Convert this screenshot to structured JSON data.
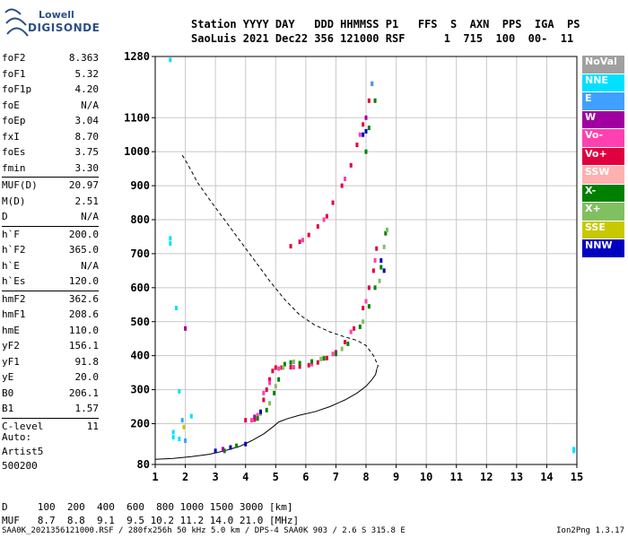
{
  "logo": {
    "line1": "Lowell",
    "line2": "DIGISONDE"
  },
  "header": {
    "labels": "Station YYYY DAY   DDD HHMMSS P1   FFS  S  AXN  PPS  IGA  PS",
    "values": "SaoLuis 2021 Dec22 356 121000 RSF      1  715  100  00-  11"
  },
  "params": [
    [
      [
        "foF2",
        "8.363"
      ],
      [
        "foF1",
        "5.32"
      ],
      [
        "foF1p",
        "4.20"
      ],
      [
        "foE",
        "N/A"
      ],
      [
        "foEp",
        "3.04"
      ],
      [
        "fxI",
        "8.70"
      ],
      [
        "foEs",
        "3.75"
      ],
      [
        "fmin",
        "3.30"
      ]
    ],
    [
      [
        "MUF(D)",
        "20.97"
      ],
      [
        "M(D)",
        "2.51"
      ],
      [
        "D",
        "N/A"
      ]
    ],
    [
      [
        "h`F",
        "200.0"
      ],
      [
        "h`F2",
        "365.0"
      ],
      [
        "h`E",
        "N/A"
      ],
      [
        "h`Es",
        "120.0"
      ]
    ],
    [
      [
        "hmF2",
        "362.6"
      ],
      [
        "hmF1",
        "208.6"
      ],
      [
        "hmE",
        "110.0"
      ],
      [
        "yF2",
        "156.1"
      ],
      [
        "yF1",
        "91.8"
      ],
      [
        "yE",
        "20.0"
      ],
      [
        "B0",
        "206.1"
      ],
      [
        "B1",
        "1.57"
      ]
    ],
    [
      [
        "C-level",
        "11"
      ]
    ]
  ],
  "auto": [
    "Auto:",
    "Artist5",
    "500200"
  ],
  "legend": [
    {
      "label": "NoVal",
      "color": "#a0a0a0"
    },
    {
      "label": "NNE",
      "color": "#00e0ff"
    },
    {
      "label": "E",
      "color": "#40a0ff"
    },
    {
      "label": "W",
      "color": "#a000a0"
    },
    {
      "label": "Vo-",
      "color": "#ff40b0"
    },
    {
      "label": "Vo+",
      "color": "#e00040"
    },
    {
      "label": "SSW",
      "color": "#ffb0b0"
    },
    {
      "label": "X-",
      "color": "#008000"
    },
    {
      "label": "X+",
      "color": "#80c060"
    },
    {
      "label": "SSE",
      "color": "#c8c800"
    },
    {
      "label": "NNW",
      "color": "#0000c0"
    }
  ],
  "muf_table": {
    "line1": "D     100  200  400  600  800 1000 1500 3000 [km]",
    "line2": "MUF   8.7  8.8  9.1  9.5 10.2 11.2 14.0 21.0 [MHz]"
  },
  "footer": "SAA0K_2021356121000.RSF / 280fx256h 50 kHz 5.0 km / DPS-4 SAA0K 903 / 2.6 S 315.8 E",
  "version": "Ion2Png 1.3.17",
  "chart_data": {
    "type": "scatter",
    "xlim": [
      1,
      15
    ],
    "ylim": [
      80,
      1280
    ],
    "xticks": [
      1,
      2,
      3,
      4,
      5,
      6,
      7,
      8,
      9,
      10,
      11,
      12,
      13,
      14,
      15
    ],
    "yticks": [
      80,
      200,
      300,
      400,
      500,
      600,
      700,
      800,
      900,
      1000,
      1100,
      1280
    ],
    "grid": true,
    "series": [
      {
        "name": "Vo+",
        "color": "#e00040",
        "points": [
          [
            4.0,
            210
          ],
          [
            4.3,
            212
          ],
          [
            4.5,
            230
          ],
          [
            4.6,
            270
          ],
          [
            4.7,
            300
          ],
          [
            4.8,
            330
          ],
          [
            4.9,
            355
          ],
          [
            5.0,
            365
          ],
          [
            5.2,
            365
          ],
          [
            5.5,
            366
          ],
          [
            5.8,
            368
          ],
          [
            6.1,
            372
          ],
          [
            6.4,
            380
          ],
          [
            6.7,
            393
          ],
          [
            7.0,
            410
          ],
          [
            7.3,
            440
          ],
          [
            7.6,
            480
          ],
          [
            7.9,
            540
          ],
          [
            8.1,
            600
          ],
          [
            8.25,
            650
          ],
          [
            8.35,
            715
          ],
          [
            5.5,
            722
          ],
          [
            5.8,
            735
          ],
          [
            6.1,
            755
          ],
          [
            6.4,
            780
          ],
          [
            6.7,
            810
          ],
          [
            6.9,
            850
          ],
          [
            7.2,
            900
          ],
          [
            7.5,
            960
          ],
          [
            7.7,
            1020
          ],
          [
            7.9,
            1080
          ],
          [
            8.1,
            1150
          ],
          [
            8.2,
            1200
          ]
        ]
      },
      {
        "name": "Vo-",
        "color": "#ff40b0",
        "points": [
          [
            4.2,
            210
          ],
          [
            4.4,
            225
          ],
          [
            4.6,
            290
          ],
          [
            4.8,
            320
          ],
          [
            5.1,
            362
          ],
          [
            5.6,
            366
          ],
          [
            6.2,
            375
          ],
          [
            6.9,
            405
          ],
          [
            7.5,
            470
          ],
          [
            8.0,
            560
          ],
          [
            8.3,
            680
          ],
          [
            5.9,
            740
          ],
          [
            6.6,
            800
          ],
          [
            7.3,
            920
          ],
          [
            7.8,
            1050
          ]
        ]
      },
      {
        "name": "X-",
        "color": "#008000",
        "points": [
          [
            3.3,
            120
          ],
          [
            3.7,
            135
          ],
          [
            4.4,
            215
          ],
          [
            4.7,
            240
          ],
          [
            4.95,
            290
          ],
          [
            5.1,
            330
          ],
          [
            5.3,
            375
          ],
          [
            5.5,
            380
          ],
          [
            5.8,
            378
          ],
          [
            6.2,
            383
          ],
          [
            6.6,
            392
          ],
          [
            7.0,
            405
          ],
          [
            7.4,
            435
          ],
          [
            7.8,
            485
          ],
          [
            8.1,
            545
          ],
          [
            8.3,
            600
          ],
          [
            8.5,
            660
          ],
          [
            8.65,
            760
          ],
          [
            8.0,
            1000
          ],
          [
            8.1,
            1070
          ],
          [
            8.3,
            1150
          ]
        ]
      },
      {
        "name": "X+",
        "color": "#80c060",
        "points": [
          [
            4.5,
            230
          ],
          [
            4.8,
            260
          ],
          [
            5.0,
            310
          ],
          [
            5.25,
            365
          ],
          [
            5.6,
            382
          ],
          [
            6.5,
            390
          ],
          [
            7.2,
            420
          ],
          [
            7.9,
            500
          ],
          [
            8.45,
            620
          ],
          [
            8.6,
            720
          ],
          [
            8.7,
            770
          ]
        ]
      },
      {
        "name": "NNW",
        "color": "#0000c0",
        "points": [
          [
            3.0,
            120
          ],
          [
            3.5,
            130
          ],
          [
            4.0,
            140
          ],
          [
            4.5,
            235
          ],
          [
            8.5,
            680
          ],
          [
            8.6,
            650
          ],
          [
            8.0,
            1060
          ],
          [
            7.9,
            1050
          ]
        ]
      },
      {
        "name": "NNE",
        "color": "#00e0ff",
        "points": [
          [
            1.5,
            1270
          ],
          [
            1.5,
            745
          ],
          [
            1.5,
            730
          ],
          [
            1.7,
            540
          ],
          [
            1.8,
            295
          ],
          [
            2.2,
            222
          ],
          [
            1.6,
            175
          ],
          [
            1.6,
            160
          ],
          [
            1.8,
            155
          ],
          [
            14.9,
            125
          ],
          [
            14.9,
            120
          ]
        ]
      },
      {
        "name": "W",
        "color": "#a000a0",
        "points": [
          [
            2.0,
            480
          ],
          [
            3.25,
            125
          ],
          [
            4.3,
            220
          ],
          [
            8.0,
            1100
          ]
        ]
      },
      {
        "name": "E",
        "color": "#40a0ff",
        "points": [
          [
            1.9,
            210
          ],
          [
            2.0,
            150
          ],
          [
            8.2,
            1200
          ]
        ]
      },
      {
        "name": "SSE",
        "color": "#c8c800",
        "points": [
          [
            1.95,
            190
          ]
        ]
      }
    ],
    "curves": [
      {
        "name": "profile",
        "style": "solid",
        "points": [
          [
            1.0,
            95
          ],
          [
            1.6,
            98
          ],
          [
            2.2,
            103
          ],
          [
            2.8,
            110
          ],
          [
            3.3,
            120
          ],
          [
            3.8,
            133
          ],
          [
            4.2,
            150
          ],
          [
            4.6,
            170
          ],
          [
            4.9,
            190
          ],
          [
            5.1,
            205
          ],
          [
            5.4,
            215
          ],
          [
            5.8,
            225
          ],
          [
            6.3,
            235
          ],
          [
            6.8,
            250
          ],
          [
            7.3,
            270
          ],
          [
            7.7,
            290
          ],
          [
            8.0,
            310
          ],
          [
            8.2,
            330
          ],
          [
            8.32,
            345
          ],
          [
            8.36,
            362
          ]
        ]
      },
      {
        "name": "model",
        "style": "dashed",
        "points": [
          [
            1.9,
            990
          ],
          [
            2.1,
            960
          ],
          [
            2.4,
            910
          ],
          [
            2.8,
            860
          ],
          [
            3.3,
            800
          ],
          [
            3.8,
            740
          ],
          [
            4.3,
            680
          ],
          [
            4.8,
            620
          ],
          [
            5.3,
            565
          ],
          [
            5.8,
            520
          ],
          [
            6.3,
            490
          ],
          [
            6.8,
            470
          ],
          [
            7.3,
            455
          ],
          [
            7.7,
            445
          ],
          [
            8.0,
            430
          ],
          [
            8.25,
            400
          ],
          [
            8.4,
            370
          ],
          [
            8.36,
            362
          ]
        ]
      }
    ]
  }
}
